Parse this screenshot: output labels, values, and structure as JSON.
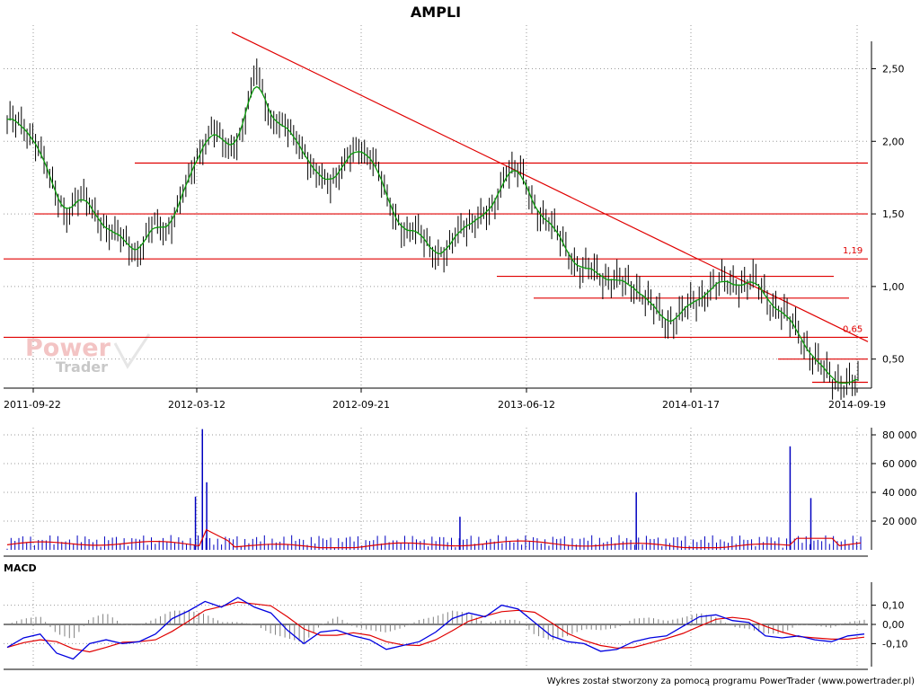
{
  "title": "AMPLI",
  "footer": "Wykres został stworzony za pomocą programu PowerTrader (www.powertrader.pl)",
  "watermark": {
    "line1": "Power",
    "line2": "Trader"
  },
  "panels": {
    "macd_label": "MACD"
  },
  "colors": {
    "price": "#000000",
    "ma": "#0b9a0b",
    "levels": "#e00000",
    "volume": "#0000c0",
    "volume_ma": "#e00000",
    "macd": "#0000e0",
    "signal": "#e00000",
    "histogram": "#808080"
  },
  "chart_data": [
    {
      "type": "line",
      "name": "AMPLI price",
      "x_ticks": [
        "2011-09-22",
        "2012-03-12",
        "2012-09-21",
        "2013-06-12",
        "2014-01-17",
        "2014-09-19"
      ],
      "y_ticks": [
        "2,50",
        "2,00",
        "1,50",
        "1,00",
        "0,50"
      ],
      "ylim": [
        0.3,
        2.8
      ],
      "grid": true,
      "close": [
        2.15,
        2.1,
        2.02,
        1.7,
        1.5,
        1.62,
        1.52,
        1.36,
        1.33,
        1.22,
        1.43,
        1.4,
        1.62,
        1.92,
        2.08,
        1.95,
        2.05,
        2.5,
        2.15,
        2.08,
        2.0,
        1.75,
        1.72,
        1.85,
        1.95,
        1.9,
        1.55,
        1.4,
        1.37,
        1.25,
        1.22,
        1.42,
        1.47,
        1.49,
        1.82,
        1.78,
        1.55,
        1.42,
        1.3,
        1.1,
        1.12,
        1.05,
        1.02,
        1.0,
        0.85,
        0.75,
        0.82,
        0.9,
        1.0,
        1.03,
        1.02,
        1.03,
        0.9,
        0.8,
        0.68,
        0.5,
        0.38,
        0.34,
        0.33
      ],
      "moving_average_color": "green",
      "level_labels": [
        "1,19",
        "0,65"
      ],
      "horizontal_levels": [
        1.85,
        1.5,
        1.19,
        1.07,
        0.92,
        0.65,
        0.5,
        0.34
      ],
      "trendline": {
        "from": [
          2012.25,
          2.75
        ],
        "to": [
          2014.75,
          0.65
        ]
      }
    },
    {
      "type": "bar",
      "name": "Volume",
      "y_ticks": [
        "80 000",
        "60 000",
        "40 000",
        "20 000"
      ],
      "ylim": [
        0,
        85000
      ],
      "spikes": [
        {
          "at": 0.23,
          "value": 84000
        },
        {
          "at": 0.235,
          "value": 47000
        },
        {
          "at": 0.222,
          "value": 37000
        },
        {
          "at": 0.528,
          "value": 23000
        },
        {
          "at": 0.732,
          "value": 40000
        },
        {
          "at": 0.91,
          "value": 72000
        },
        {
          "at": 0.934,
          "value": 36000
        }
      ],
      "moving_average_color": "red"
    },
    {
      "type": "line",
      "name": "MACD",
      "y_ticks": [
        "0,10",
        "0,00",
        "-0,10"
      ],
      "ylim": [
        -0.22,
        0.22
      ],
      "macd": [
        -0.12,
        -0.07,
        -0.05,
        -0.15,
        -0.18,
        -0.1,
        -0.08,
        -0.1,
        -0.09,
        -0.05,
        0.03,
        0.07,
        0.12,
        0.09,
        0.14,
        0.09,
        0.06,
        -0.03,
        -0.1,
        -0.04,
        -0.03,
        -0.06,
        -0.08,
        -0.13,
        -0.11,
        -0.09,
        -0.04,
        0.03,
        0.06,
        0.04,
        0.1,
        0.08,
        0.01,
        -0.06,
        -0.09,
        -0.1,
        -0.14,
        -0.13,
        -0.09,
        -0.07,
        -0.06,
        -0.01,
        0.04,
        0.05,
        0.02,
        0.01,
        -0.06,
        -0.07,
        -0.06,
        -0.08,
        -0.09,
        -0.06,
        -0.05
      ]
    }
  ]
}
